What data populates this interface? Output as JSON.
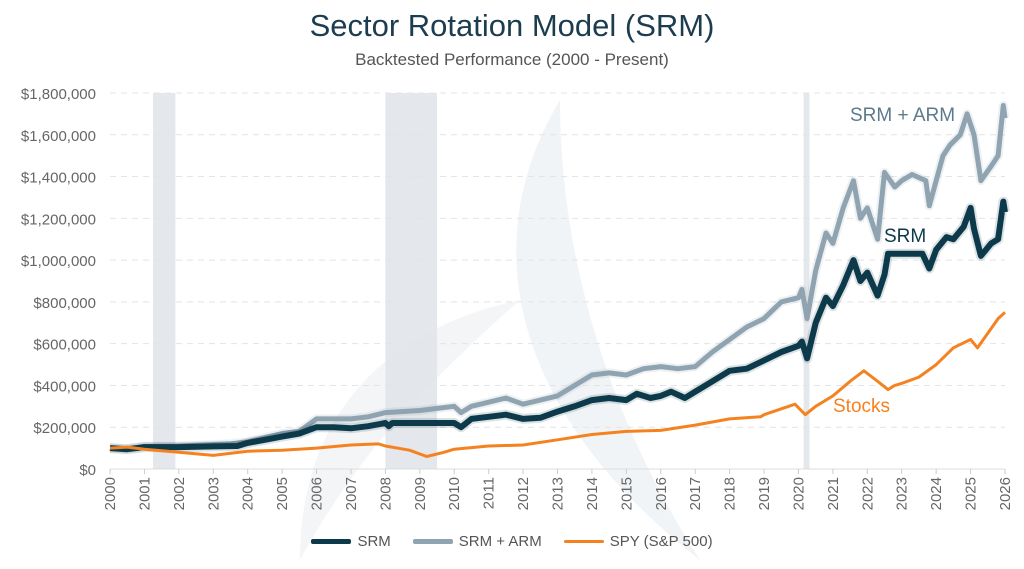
{
  "chart_data": {
    "type": "line",
    "title": "Sector Rotation Model (SRM)",
    "subtitle": "Backtested Performance (2000 - Present)",
    "xlabel": "",
    "ylabel": "",
    "xlim": [
      2000,
      2026
    ],
    "ylim": [
      0,
      1800000
    ],
    "grid": true,
    "legend_position": "bottom",
    "x_ticks": [
      "2000",
      "2001",
      "2002",
      "2003",
      "2004",
      "2005",
      "2006",
      "2007",
      "2008",
      "2009",
      "2010",
      "2011",
      "2012",
      "2013",
      "2014",
      "2015",
      "2016",
      "2017",
      "2018",
      "2019",
      "2020",
      "2021",
      "2022",
      "2023",
      "2024",
      "2025",
      "2026"
    ],
    "y_ticks": [
      "$0",
      "$200,000",
      "$400,000",
      "$600,000",
      "$800,000",
      "$1,000,000",
      "$1,200,000",
      "$1,400,000",
      "$1,600,000",
      "$1,800,000"
    ],
    "shaded_periods": [
      [
        2001.25,
        2001.9
      ],
      [
        2008.0,
        2009.5
      ],
      [
        2020.15,
        2020.32
      ]
    ],
    "series": [
      {
        "name": "SRM",
        "color": "#0d3a4a",
        "points": [
          [
            2000,
            100000
          ],
          [
            2000.5,
            95000
          ],
          [
            2001,
            105000
          ],
          [
            2002,
            105000
          ],
          [
            2003,
            108000
          ],
          [
            2003.7,
            110000
          ],
          [
            2004,
            125000
          ],
          [
            2004.5,
            140000
          ],
          [
            2005,
            155000
          ],
          [
            2005.5,
            170000
          ],
          [
            2006,
            200000
          ],
          [
            2006.5,
            200000
          ],
          [
            2007,
            195000
          ],
          [
            2007.5,
            205000
          ],
          [
            2008,
            220000
          ],
          [
            2008.1,
            205000
          ],
          [
            2008.2,
            220000
          ],
          [
            2009.5,
            220000
          ],
          [
            2010,
            220000
          ],
          [
            2010.2,
            200000
          ],
          [
            2010.5,
            240000
          ],
          [
            2011,
            250000
          ],
          [
            2011.5,
            260000
          ],
          [
            2012,
            240000
          ],
          [
            2012.5,
            245000
          ],
          [
            2013,
            275000
          ],
          [
            2013.5,
            300000
          ],
          [
            2014,
            330000
          ],
          [
            2014.5,
            340000
          ],
          [
            2015,
            330000
          ],
          [
            2015.3,
            360000
          ],
          [
            2015.7,
            340000
          ],
          [
            2016,
            350000
          ],
          [
            2016.3,
            370000
          ],
          [
            2016.7,
            340000
          ],
          [
            2017,
            370000
          ],
          [
            2017.5,
            420000
          ],
          [
            2018,
            470000
          ],
          [
            2018.5,
            480000
          ],
          [
            2019,
            520000
          ],
          [
            2019.5,
            560000
          ],
          [
            2020,
            590000
          ],
          [
            2020.1,
            610000
          ],
          [
            2020.25,
            530000
          ],
          [
            2020.5,
            700000
          ],
          [
            2020.8,
            820000
          ],
          [
            2021,
            780000
          ],
          [
            2021.3,
            880000
          ],
          [
            2021.6,
            1000000
          ],
          [
            2021.8,
            900000
          ],
          [
            2022,
            940000
          ],
          [
            2022.3,
            830000
          ],
          [
            2022.5,
            930000
          ],
          [
            2022.6,
            1030000
          ],
          [
            2023.6,
            1030000
          ],
          [
            2023.8,
            960000
          ],
          [
            2024,
            1050000
          ],
          [
            2024.3,
            1110000
          ],
          [
            2024.5,
            1100000
          ],
          [
            2024.8,
            1160000
          ],
          [
            2025,
            1250000
          ],
          [
            2025.1,
            1150000
          ],
          [
            2025.3,
            1020000
          ],
          [
            2025.6,
            1080000
          ],
          [
            2025.8,
            1100000
          ],
          [
            2025.95,
            1280000
          ],
          [
            2026,
            1230000
          ]
        ]
      },
      {
        "name": "SRM + ARM",
        "color": "#8fa3b1",
        "points": [
          [
            2000,
            100000
          ],
          [
            2000.5,
            95000
          ],
          [
            2001,
            108000
          ],
          [
            2002,
            110000
          ],
          [
            2003.5,
            120000
          ],
          [
            2004,
            130000
          ],
          [
            2005,
            170000
          ],
          [
            2005.5,
            180000
          ],
          [
            2006,
            240000
          ],
          [
            2007,
            240000
          ],
          [
            2007.5,
            250000
          ],
          [
            2008,
            270000
          ],
          [
            2009,
            280000
          ],
          [
            2009.5,
            290000
          ],
          [
            2010,
            300000
          ],
          [
            2010.2,
            270000
          ],
          [
            2010.5,
            300000
          ],
          [
            2011,
            320000
          ],
          [
            2011.5,
            340000
          ],
          [
            2012,
            310000
          ],
          [
            2012.5,
            330000
          ],
          [
            2013,
            350000
          ],
          [
            2013.5,
            400000
          ],
          [
            2014,
            450000
          ],
          [
            2014.5,
            460000
          ],
          [
            2015,
            450000
          ],
          [
            2015.5,
            480000
          ],
          [
            2016,
            490000
          ],
          [
            2016.5,
            480000
          ],
          [
            2017,
            490000
          ],
          [
            2017.5,
            560000
          ],
          [
            2018,
            620000
          ],
          [
            2018.5,
            680000
          ],
          [
            2019,
            720000
          ],
          [
            2019.5,
            800000
          ],
          [
            2020,
            820000
          ],
          [
            2020.1,
            860000
          ],
          [
            2020.25,
            720000
          ],
          [
            2020.5,
            950000
          ],
          [
            2020.8,
            1130000
          ],
          [
            2021,
            1080000
          ],
          [
            2021.3,
            1250000
          ],
          [
            2021.6,
            1380000
          ],
          [
            2021.8,
            1200000
          ],
          [
            2022,
            1250000
          ],
          [
            2022.3,
            1100000
          ],
          [
            2022.5,
            1420000
          ],
          [
            2022.8,
            1350000
          ],
          [
            2023,
            1380000
          ],
          [
            2023.3,
            1410000
          ],
          [
            2023.7,
            1380000
          ],
          [
            2023.8,
            1260000
          ],
          [
            2024.2,
            1500000
          ],
          [
            2024.4,
            1550000
          ],
          [
            2024.7,
            1600000
          ],
          [
            2024.9,
            1700000
          ],
          [
            2025.1,
            1600000
          ],
          [
            2025.3,
            1380000
          ],
          [
            2025.6,
            1450000
          ],
          [
            2025.8,
            1500000
          ],
          [
            2025.95,
            1740000
          ],
          [
            2026,
            1680000
          ]
        ]
      },
      {
        "name": "SPY (S&P 500)",
        "color": "#f58220",
        "points": [
          [
            2000,
            100000
          ],
          [
            2000.5,
            105000
          ],
          [
            2001,
            95000
          ],
          [
            2002,
            80000
          ],
          [
            2003,
            65000
          ],
          [
            2004,
            85000
          ],
          [
            2005,
            90000
          ],
          [
            2006,
            100000
          ],
          [
            2007,
            115000
          ],
          [
            2007.8,
            120000
          ],
          [
            2008,
            110000
          ],
          [
            2008.7,
            90000
          ],
          [
            2009.2,
            60000
          ],
          [
            2009.7,
            80000
          ],
          [
            2010,
            95000
          ],
          [
            2011,
            110000
          ],
          [
            2012,
            115000
          ],
          [
            2013,
            140000
          ],
          [
            2014,
            165000
          ],
          [
            2015,
            180000
          ],
          [
            2016,
            185000
          ],
          [
            2017,
            210000
          ],
          [
            2018,
            240000
          ],
          [
            2018.9,
            250000
          ],
          [
            2019,
            260000
          ],
          [
            2019.9,
            310000
          ],
          [
            2020.2,
            260000
          ],
          [
            2020.5,
            300000
          ],
          [
            2021,
            350000
          ],
          [
            2021.5,
            420000
          ],
          [
            2021.9,
            470000
          ],
          [
            2022.3,
            420000
          ],
          [
            2022.6,
            380000
          ],
          [
            2022.8,
            400000
          ],
          [
            2023,
            410000
          ],
          [
            2023.5,
            440000
          ],
          [
            2024,
            500000
          ],
          [
            2024.5,
            580000
          ],
          [
            2025,
            620000
          ],
          [
            2025.2,
            580000
          ],
          [
            2025.5,
            650000
          ],
          [
            2025.8,
            720000
          ],
          [
            2026,
            750000
          ]
        ]
      }
    ],
    "annotations": {
      "srm_arm": "SRM + ARM",
      "srm": "SRM",
      "stocks": "Stocks"
    },
    "legend": [
      "SRM",
      "SRM + ARM",
      "SPY (S&P 500)"
    ]
  }
}
